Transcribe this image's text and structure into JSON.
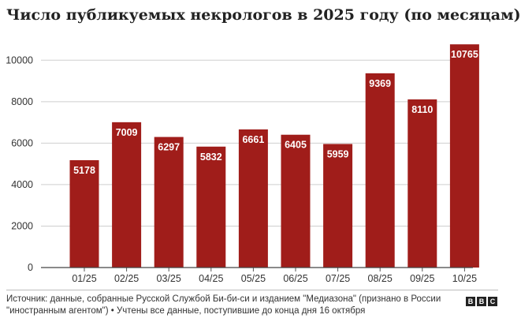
{
  "title": "Число публикуемых некрологов в 2025 году (по месяцам)",
  "chart_data": {
    "type": "bar",
    "title": "Число публикуемых некрологов в 2025 году (по месяцам)",
    "categories": [
      "01/25",
      "02/25",
      "03/25",
      "04/25",
      "05/25",
      "06/25",
      "07/25",
      "08/25",
      "09/25",
      "10/25"
    ],
    "values": [
      5178,
      7009,
      6297,
      5832,
      6661,
      6405,
      5959,
      9369,
      8110,
      10765
    ],
    "yticks": [
      0,
      2000,
      4000,
      6000,
      8000,
      10000
    ],
    "ylim": [
      0,
      11000
    ],
    "xlabel": "",
    "ylabel": "",
    "grid": "horizontal",
    "bar_color": "#a01d1a",
    "label_color": "#ffffff"
  },
  "footer": {
    "source_line1": "Источник: данные, собранные Русской Службой Би-би-си и изданием \"Медиазона\" (признано в России",
    "source_line2": "\"иностранным агентом\") • Учтены все данные, поступившие до конца дня 16 октября",
    "logo_letters": [
      "B",
      "B",
      "C"
    ]
  }
}
